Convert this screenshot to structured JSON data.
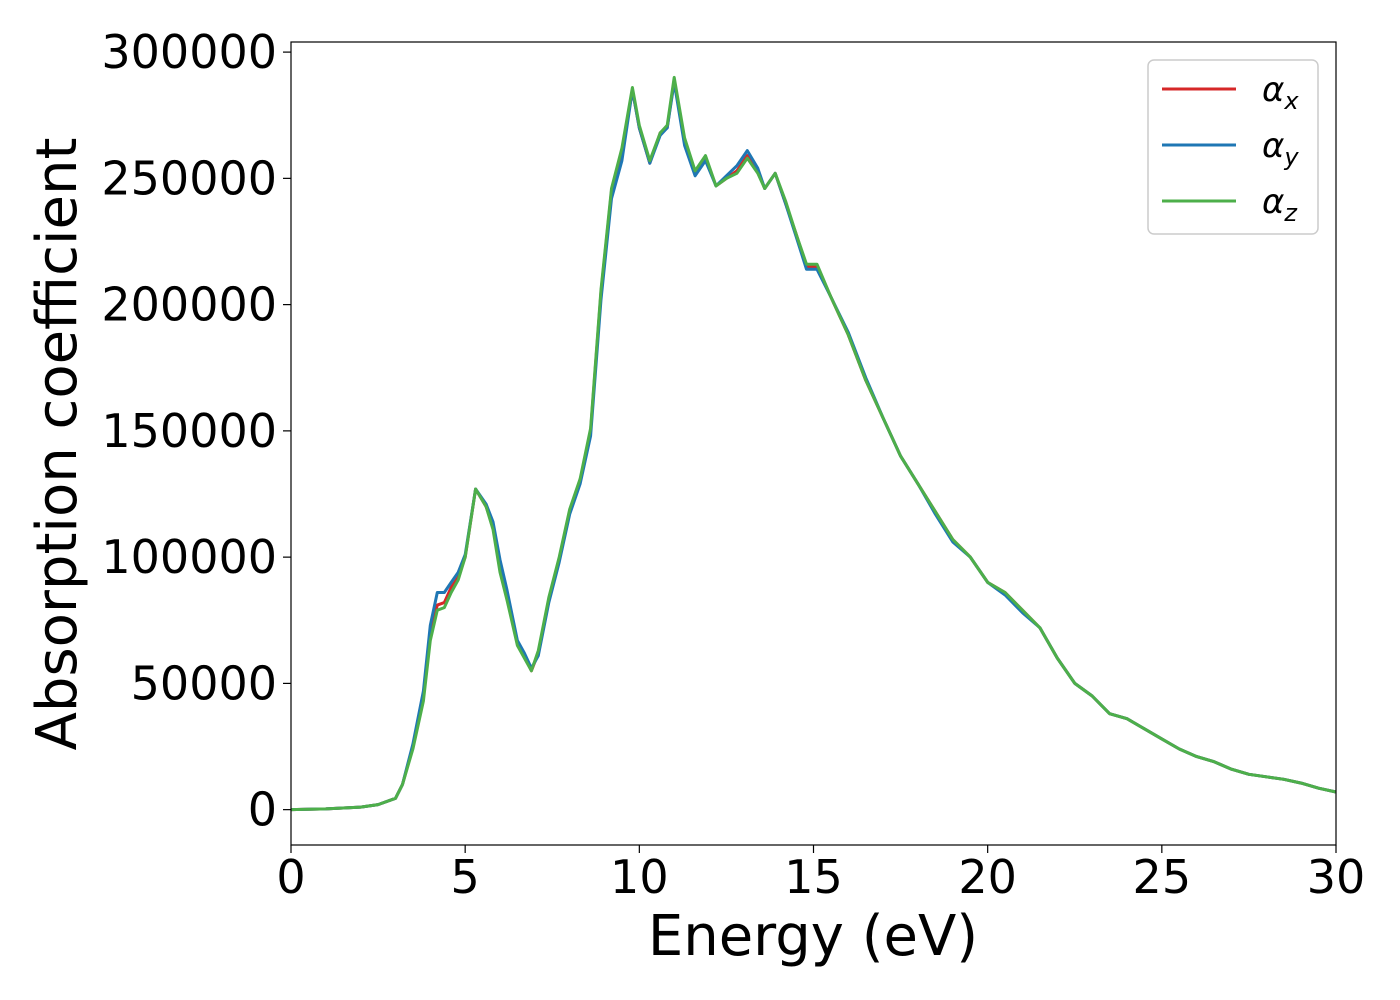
{
  "chart_data": {
    "type": "line",
    "xlabel": "Energy (eV)",
    "ylabel": "Absorption coefficient",
    "xlim": [
      0,
      30
    ],
    "ylim": [
      -14000,
      304000
    ],
    "xticks": [
      0,
      5,
      10,
      15,
      20,
      25,
      30
    ],
    "yticks": [
      0,
      50000,
      100000,
      150000,
      200000,
      250000,
      300000
    ],
    "grid": false,
    "legend_position": "top-right",
    "x": [
      0,
      1,
      2,
      2.5,
      3,
      3.2,
      3.5,
      3.8,
      4.0,
      4.2,
      4.4,
      4.6,
      4.8,
      5.0,
      5.3,
      5.6,
      5.8,
      6.0,
      6.2,
      6.5,
      6.7,
      6.9,
      7.1,
      7.4,
      7.7,
      8.0,
      8.3,
      8.6,
      8.9,
      9.2,
      9.5,
      9.8,
      10.0,
      10.3,
      10.6,
      10.8,
      11.0,
      11.3,
      11.6,
      11.9,
      12.2,
      12.5,
      12.8,
      13.1,
      13.4,
      13.6,
      13.9,
      14.2,
      14.5,
      14.8,
      15.1,
      15.5,
      16.0,
      16.5,
      17.0,
      17.5,
      18.0,
      18.5,
      19.0,
      19.5,
      20.0,
      20.5,
      21.0,
      21.5,
      22.0,
      22.5,
      23.0,
      23.5,
      24.0,
      24.5,
      25.0,
      25.5,
      26.0,
      26.5,
      27.0,
      27.5,
      28.0,
      28.5,
      29.0,
      29.5,
      30.0
    ],
    "series": [
      {
        "name": "α",
        "subscript": "x",
        "color": "#d62728",
        "values": [
          0,
          300,
          1000,
          2000,
          4500,
          10000,
          25000,
          45000,
          70000,
          81000,
          82000,
          88000,
          92000,
          100000,
          127000,
          120000,
          112000,
          96000,
          85000,
          66000,
          61000,
          55000,
          62000,
          83000,
          99000,
          118000,
          130000,
          150000,
          205000,
          245000,
          260000,
          285000,
          270000,
          256000,
          268000,
          270000,
          289000,
          265000,
          252000,
          258000,
          247000,
          250000,
          253000,
          259000,
          253000,
          246000,
          252000,
          240000,
          228000,
          215000,
          215000,
          203000,
          188000,
          170000,
          155000,
          140000,
          129000,
          118000,
          107000,
          100000,
          90000,
          86000,
          79000,
          72000,
          60000,
          50000,
          45000,
          38000,
          36000,
          32000,
          28000,
          24000,
          21000,
          19000,
          16000,
          14000,
          13000,
          12000,
          10500,
          8500,
          7000
        ]
      },
      {
        "name": "α",
        "subscript": "y",
        "color": "#1f77b4",
        "values": [
          0,
          300,
          1000,
          2000,
          4500,
          10000,
          26000,
          47000,
          73000,
          86000,
          86000,
          90000,
          94000,
          101000,
          127000,
          121000,
          114000,
          99000,
          87000,
          67000,
          62000,
          56000,
          61000,
          82000,
          98000,
          117000,
          129000,
          148000,
          202000,
          242000,
          257000,
          285000,
          270000,
          256000,
          267000,
          270000,
          288000,
          263000,
          251000,
          257000,
          247000,
          251000,
          255000,
          261000,
          254000,
          246000,
          252000,
          240000,
          227000,
          214000,
          214000,
          203000,
          189000,
          171000,
          155000,
          140000,
          129000,
          117000,
          106000,
          100000,
          90000,
          85000,
          78000,
          72000,
          60000,
          50000,
          45000,
          38000,
          36000,
          32000,
          28000,
          24000,
          21000,
          19000,
          16000,
          14000,
          13000,
          12000,
          10500,
          8500,
          7000
        ]
      },
      {
        "name": "α",
        "subscript": "z",
        "color": "#4daf4a",
        "values": [
          0,
          300,
          1000,
          2000,
          4500,
          10000,
          24000,
          43000,
          67000,
          79000,
          80000,
          86000,
          91000,
          100000,
          127000,
          120000,
          111000,
          94000,
          83000,
          65000,
          60000,
          55000,
          63000,
          84000,
          100000,
          119000,
          131000,
          151000,
          206000,
          246000,
          262000,
          286000,
          271000,
          257000,
          268000,
          271000,
          290000,
          266000,
          253000,
          259000,
          247000,
          250000,
          252000,
          258000,
          252000,
          246000,
          252000,
          241000,
          228000,
          216000,
          216000,
          203000,
          188000,
          170000,
          155000,
          140000,
          129000,
          118000,
          107000,
          100000,
          90000,
          86000,
          79000,
          72000,
          60000,
          50000,
          45000,
          38000,
          36000,
          32000,
          28000,
          24000,
          21000,
          19000,
          16000,
          14000,
          13000,
          12000,
          10500,
          8500,
          7000
        ]
      }
    ]
  }
}
